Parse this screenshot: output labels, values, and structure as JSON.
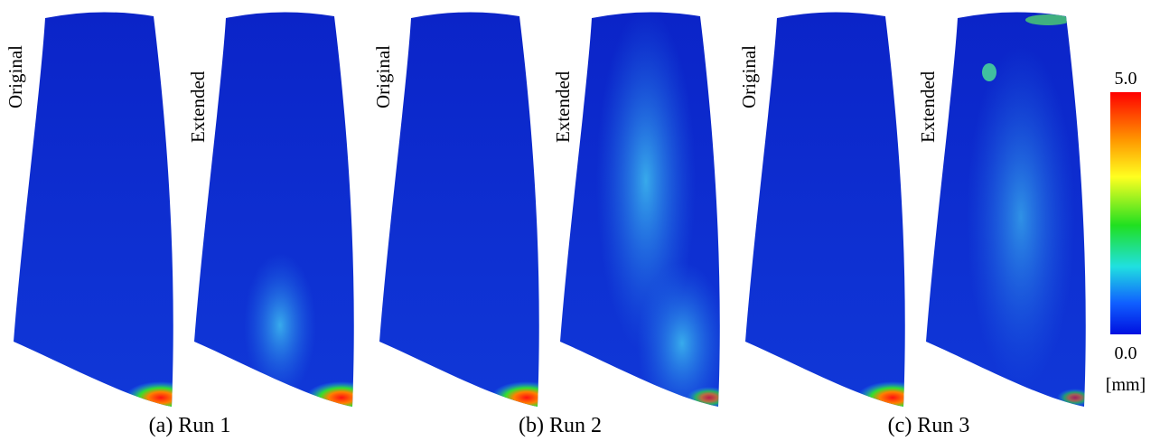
{
  "panels": [
    {
      "caption": "(a) Run 1",
      "views": [
        "Original",
        "Extended"
      ]
    },
    {
      "caption": "(b) Run 2",
      "views": [
        "Original",
        "Extended"
      ]
    },
    {
      "caption": "(c) Run 3",
      "views": [
        "Original",
        "Extended"
      ]
    }
  ],
  "colorbar": {
    "max": "5.0",
    "min": "0.0",
    "unit": "[mm]"
  }
}
